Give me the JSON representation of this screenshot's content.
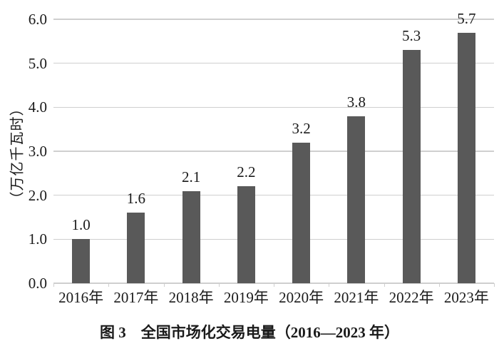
{
  "figure": {
    "caption": "图 3　全国市场化交易电量（2016—2023 年）"
  },
  "chart_data": {
    "type": "bar",
    "title": "图 3　全国市场化交易电量（2016—2023 年）",
    "xlabel": "",
    "ylabel": "（万亿千瓦时）",
    "categories": [
      "2016年",
      "2017年",
      "2018年",
      "2019年",
      "2020年",
      "2021年",
      "2022年",
      "2023年"
    ],
    "values": [
      1.0,
      1.6,
      2.1,
      2.2,
      3.2,
      3.8,
      5.3,
      5.7
    ],
    "value_labels": [
      "1.0",
      "1.6",
      "2.1",
      "2.2",
      "3.2",
      "3.8",
      "5.3",
      "5.7"
    ],
    "ylim": [
      0,
      6
    ],
    "yticks": [
      0,
      1,
      2,
      3,
      4,
      5,
      6
    ],
    "ytick_labels": [
      "0.0",
      "1.0",
      "2.0",
      "3.0",
      "4.0",
      "5.0",
      "6.0"
    ],
    "grid": "horizontal",
    "legend": false,
    "colors": {
      "bar": "#595959",
      "gridline": "#cfcfcf",
      "text": "#1a1a1a",
      "background": "#ffffff"
    }
  }
}
